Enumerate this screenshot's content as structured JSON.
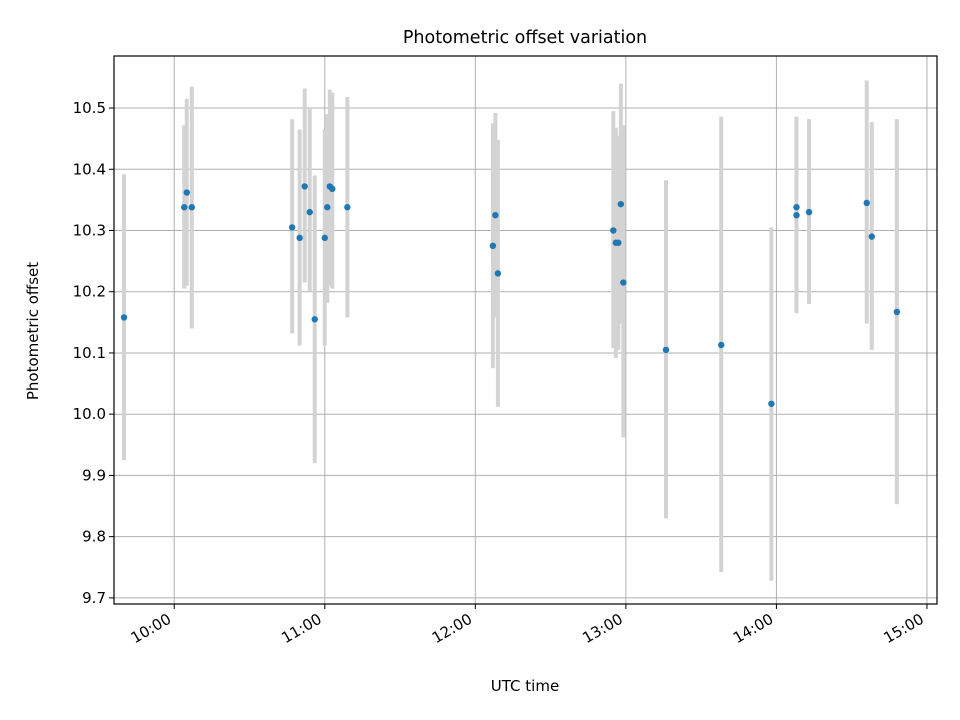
{
  "chart_data": {
    "type": "scatter",
    "title": "Photometric offset variation",
    "xlabel": "UTC time",
    "ylabel": "Photometric offset",
    "x_tick_labels": [
      "10:00",
      "11:00",
      "12:00",
      "13:00",
      "14:00",
      "15:00"
    ],
    "y_tick_labels": [
      "9.7",
      "9.8",
      "9.9",
      "10.0",
      "10.1",
      "10.2",
      "10.3",
      "10.4",
      "10.5"
    ],
    "xlim": [
      "09:36",
      "15:04"
    ],
    "ylim": [
      9.69,
      10.585
    ],
    "grid": true,
    "marker_color": "#1f77b4",
    "errorbar_color": "#d3d3d3",
    "points": [
      {
        "x": "09:40",
        "y": 10.158,
        "low": 9.925,
        "high": 10.392
      },
      {
        "x": "10:04",
        "y": 10.338,
        "low": 10.205,
        "high": 10.472
      },
      {
        "x": "10:05",
        "y": 10.362,
        "low": 10.21,
        "high": 10.515
      },
      {
        "x": "10:07",
        "y": 10.338,
        "low": 10.14,
        "high": 10.535
      },
      {
        "x": "10:47",
        "y": 10.305,
        "low": 10.132,
        "high": 10.482
      },
      {
        "x": "10:50",
        "y": 10.288,
        "low": 10.112,
        "high": 10.465
      },
      {
        "x": "10:52",
        "y": 10.372,
        "low": 10.215,
        "high": 10.532
      },
      {
        "x": "10:54",
        "y": 10.33,
        "low": 10.2,
        "high": 10.5
      },
      {
        "x": "10:56",
        "y": 10.155,
        "low": 9.92,
        "high": 10.39
      },
      {
        "x": "11:00",
        "y": 10.288,
        "low": 10.112,
        "high": 10.465
      },
      {
        "x": "11:01",
        "y": 10.338,
        "low": 10.182,
        "high": 10.49
      },
      {
        "x": "11:02",
        "y": 10.372,
        "low": 10.21,
        "high": 10.53
      },
      {
        "x": "11:03",
        "y": 10.368,
        "low": 10.205,
        "high": 10.525
      },
      {
        "x": "11:09",
        "y": 10.338,
        "low": 10.158,
        "high": 10.518
      },
      {
        "x": "12:07",
        "y": 10.275,
        "low": 10.075,
        "high": 10.475
      },
      {
        "x": "12:08",
        "y": 10.325,
        "low": 10.158,
        "high": 10.492
      },
      {
        "x": "12:09",
        "y": 10.23,
        "low": 10.012,
        "high": 10.448
      },
      {
        "x": "12:55",
        "y": 10.3,
        "low": 10.108,
        "high": 10.495
      },
      {
        "x": "12:56",
        "y": 10.28,
        "low": 10.092,
        "high": 10.468
      },
      {
        "x": "12:57",
        "y": 10.28,
        "low": 10.105,
        "high": 10.455
      },
      {
        "x": "12:58",
        "y": 10.343,
        "low": 10.148,
        "high": 10.54
      },
      {
        "x": "12:59",
        "y": 10.215,
        "low": 9.962,
        "high": 10.472
      },
      {
        "x": "13:16",
        "y": 10.105,
        "low": 9.83,
        "high": 10.382
      },
      {
        "x": "13:38",
        "y": 10.113,
        "low": 9.742,
        "high": 10.486
      },
      {
        "x": "13:58",
        "y": 10.017,
        "low": 9.728,
        "high": 10.305
      },
      {
        "x": "14:08",
        "y": 10.338,
        "low": 10.165,
        "high": 10.486
      },
      {
        "x": "14:08",
        "y": 10.325,
        "low": 10.165,
        "high": 10.486
      },
      {
        "x": "14:13",
        "y": 10.33,
        "low": 10.18,
        "high": 10.482
      },
      {
        "x": "14:36",
        "y": 10.345,
        "low": 10.148,
        "high": 10.545
      },
      {
        "x": "14:38",
        "y": 10.29,
        "low": 10.105,
        "high": 10.477
      },
      {
        "x": "14:48",
        "y": 10.167,
        "low": 9.853,
        "high": 10.482
      }
    ]
  }
}
